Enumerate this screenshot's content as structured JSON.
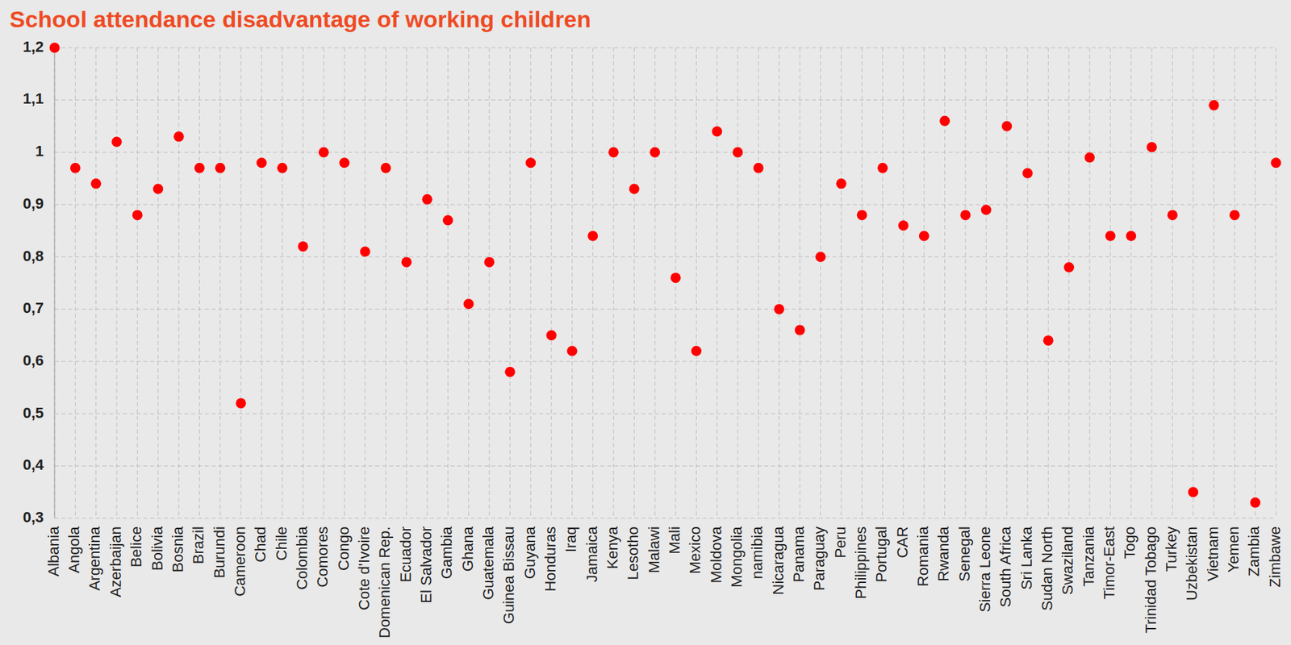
{
  "chart_data": {
    "type": "scatter",
    "title": "School attendance disadvantage of working children",
    "categories": [
      "Albania",
      "Angola",
      "Argentina",
      "Azerbaijan",
      "Belice",
      "Bolivia",
      "Bosnia",
      "Brazil",
      "Burundi",
      "Cameroon",
      "Chad",
      "Chile",
      "Colombia",
      "Comores",
      "Congo",
      "Cote d'Ivoire",
      "Domenican Rep.",
      "Ecuador",
      "El Salvador",
      "Gambia",
      "Ghana",
      "Guatemala",
      "Guinea Bissau",
      "Guyana",
      "Honduras",
      "Iraq",
      "Jamaica",
      "Kenya",
      "Lesotho",
      "Malawi",
      "Mali",
      "Mexico",
      "Moldova",
      "Mongolia",
      "namibia",
      "Nicaragua",
      "Panama",
      "Paraguay",
      "Peru",
      "Philippines",
      "Portugal",
      "CAR",
      "Romania",
      "Rwanda",
      "Senegal",
      "Sierra Leone",
      "South Africa",
      "Sri Lanka",
      "Sudan North",
      "Swaziland",
      "Tanzania",
      "Timor-East",
      "Togo",
      "Trinidad Tobago",
      "Turkey",
      "Uzbekistan",
      "Vietnam",
      "Yemen",
      "Zambia",
      "Zimbawe"
    ],
    "values": [
      1.2,
      0.97,
      0.94,
      1.02,
      0.88,
      0.93,
      1.03,
      0.97,
      0.97,
      0.52,
      0.98,
      0.97,
      0.82,
      1.0,
      0.98,
      0.81,
      0.97,
      0.79,
      0.91,
      0.87,
      0.71,
      0.79,
      0.58,
      0.98,
      0.65,
      0.62,
      0.84,
      1.0,
      0.93,
      1.0,
      0.76,
      0.62,
      1.04,
      1.0,
      0.97,
      0.7,
      0.66,
      0.8,
      0.94,
      0.88,
      0.97,
      0.86,
      0.84,
      1.06,
      0.88,
      0.89,
      1.05,
      0.96,
      0.64,
      0.78,
      0.99,
      0.84,
      0.84,
      1.01,
      0.88,
      0.35,
      1.09,
      0.88,
      0.33,
      0.98
    ],
    "color": "#ff0000",
    "marker": "circle",
    "ylim": [
      0.3,
      1.2
    ],
    "yticks": [
      {
        "value": 0.3,
        "label": "0,3"
      },
      {
        "value": 0.4,
        "label": "0,4"
      },
      {
        "value": 0.5,
        "label": "0,5"
      },
      {
        "value": 0.6,
        "label": "0,6"
      },
      {
        "value": 0.7,
        "label": "0,7"
      },
      {
        "value": 0.8,
        "label": "0,8"
      },
      {
        "value": 0.9,
        "label": "0,9"
      },
      1,
      {
        "value": 1.1,
        "label": "1,1"
      },
      {
        "value": 1.2,
        "label": "1,2"
      }
    ],
    "grid": true
  }
}
